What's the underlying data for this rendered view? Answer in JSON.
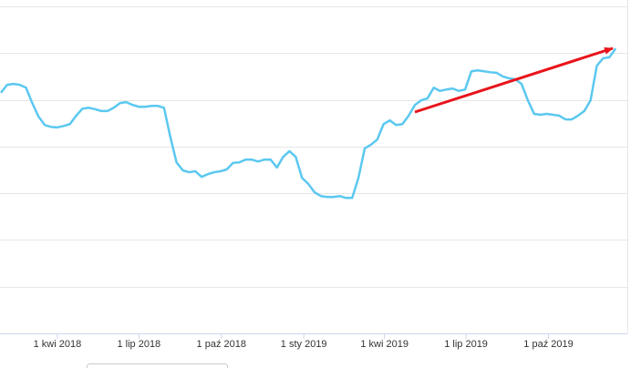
{
  "chart_data": {
    "type": "line",
    "x": [
      "2018-01-28",
      "2018-02-04",
      "2018-02-11",
      "2018-02-18",
      "2018-02-25",
      "2018-03-04",
      "2018-03-11",
      "2018-03-18",
      "2018-03-25",
      "2018-04-01",
      "2018-04-08",
      "2018-04-15",
      "2018-04-22",
      "2018-04-29",
      "2018-05-06",
      "2018-05-13",
      "2018-05-20",
      "2018-05-27",
      "2018-06-03",
      "2018-06-10",
      "2018-06-17",
      "2018-06-24",
      "2018-07-01",
      "2018-07-08",
      "2018-07-15",
      "2018-07-22",
      "2018-07-29",
      "2018-08-05",
      "2018-08-12",
      "2018-08-19",
      "2018-08-26",
      "2018-09-02",
      "2018-09-09",
      "2018-09-16",
      "2018-09-23",
      "2018-09-30",
      "2018-10-07",
      "2018-10-14",
      "2018-10-21",
      "2018-10-28",
      "2018-11-04",
      "2018-11-11",
      "2018-11-18",
      "2018-11-25",
      "2018-12-02",
      "2018-12-09",
      "2018-12-16",
      "2018-12-23",
      "2018-12-30",
      "2019-01-06",
      "2019-01-13",
      "2019-01-20",
      "2019-01-27",
      "2019-02-03",
      "2019-02-10",
      "2019-02-17",
      "2019-02-24",
      "2019-03-03",
      "2019-03-10",
      "2019-03-17",
      "2019-03-24",
      "2019-03-31",
      "2019-04-07",
      "2019-04-14",
      "2019-04-21",
      "2019-04-28",
      "2019-05-05",
      "2019-05-12",
      "2019-05-19",
      "2019-05-26",
      "2019-06-02",
      "2019-06-09",
      "2019-06-16",
      "2019-06-23",
      "2019-06-30",
      "2019-07-07",
      "2019-07-14",
      "2019-07-21",
      "2019-07-28",
      "2019-08-04",
      "2019-08-11",
      "2019-08-18",
      "2019-08-25",
      "2019-09-01",
      "2019-09-08",
      "2019-09-15",
      "2019-09-22",
      "2019-09-29",
      "2019-10-06",
      "2019-10-13",
      "2019-10-20",
      "2019-10-27",
      "2019-11-03",
      "2019-11-10",
      "2019-11-17",
      "2019-11-24",
      "2019-12-01",
      "2019-12-08",
      "2019-12-15"
    ],
    "series": [
      {
        "color": "#5bc8f0",
        "values": [
          5.15,
          5.32,
          5.34,
          5.32,
          5.26,
          4.93,
          4.64,
          4.46,
          4.42,
          4.41,
          4.44,
          4.48,
          4.66,
          4.81,
          4.83,
          4.8,
          4.76,
          4.76,
          4.83,
          4.93,
          4.95,
          4.89,
          4.85,
          4.85,
          4.87,
          4.87,
          4.83,
          4.21,
          3.66,
          3.49,
          3.45,
          3.47,
          3.35,
          3.41,
          3.45,
          3.47,
          3.51,
          3.65,
          3.66,
          3.72,
          3.72,
          3.68,
          3.72,
          3.72,
          3.55,
          3.78,
          3.9,
          3.78,
          3.33,
          3.2,
          3.02,
          2.94,
          2.92,
          2.92,
          2.94,
          2.9,
          2.9,
          3.33,
          3.96,
          4.04,
          4.15,
          4.48,
          4.56,
          4.46,
          4.48,
          4.66,
          4.89,
          4.99,
          5.03,
          5.26,
          5.19,
          5.22,
          5.24,
          5.19,
          5.22,
          5.61,
          5.63,
          5.61,
          5.59,
          5.58,
          5.5,
          5.46,
          5.44,
          5.34,
          4.99,
          4.7,
          4.68,
          4.7,
          4.68,
          4.66,
          4.58,
          4.58,
          4.66,
          4.76,
          4.99,
          5.73,
          5.89,
          5.91,
          6.1
        ]
      }
    ],
    "xlim": [
      "2018-01-27",
      "2019-12-28"
    ],
    "xticks": [
      {
        "value": "2018-04-01",
        "label": "1 kwi 2018"
      },
      {
        "value": "2018-07-01",
        "label": "1 lip 2018"
      },
      {
        "value": "2018-10-01",
        "label": "1 paź 2018"
      },
      {
        "value": "2019-01-01",
        "label": "1 sty 2019"
      },
      {
        "value": "2019-04-01",
        "label": "1 kwi 2019"
      },
      {
        "value": "2019-07-01",
        "label": "1 lip 2019"
      },
      {
        "value": "2019-10-01",
        "label": "1 paź 2019"
      }
    ],
    "ylim": [
      0,
      7
    ],
    "yticks": [
      0,
      1,
      2,
      3,
      4,
      5,
      6,
      7
    ],
    "grid": true
  }
}
